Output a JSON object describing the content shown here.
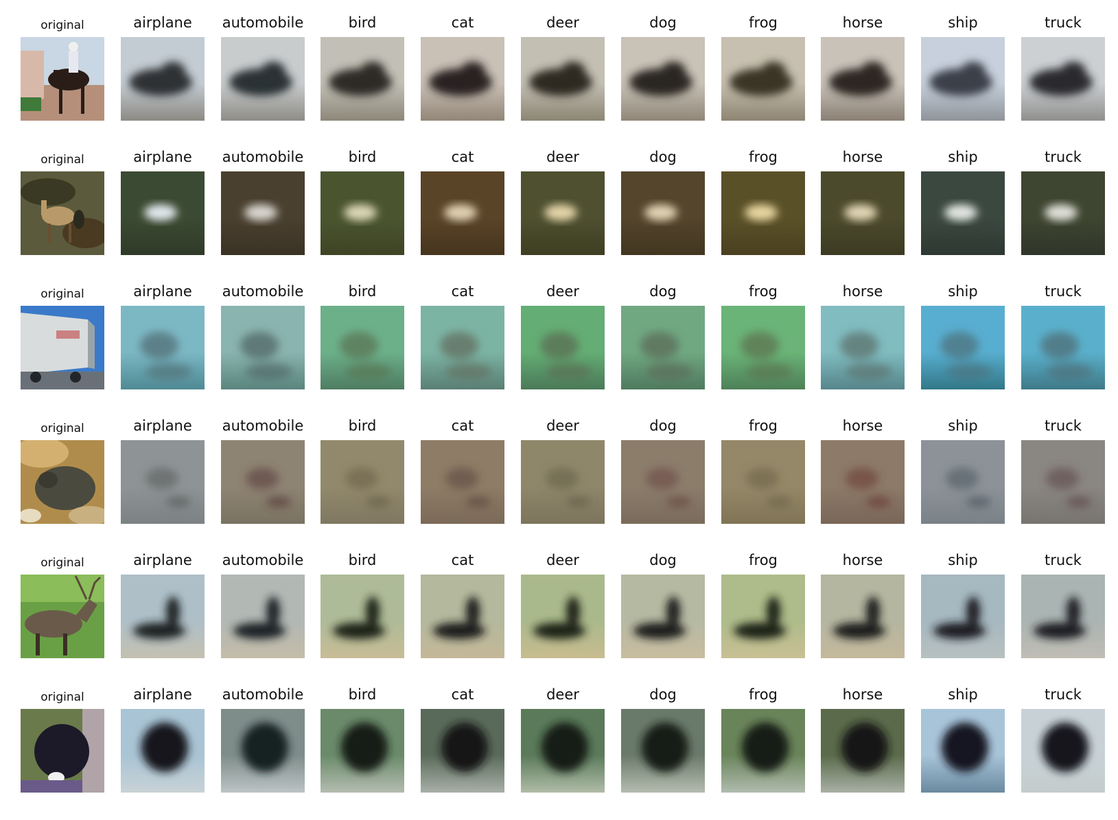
{
  "original_label": "original",
  "class_labels": [
    "airplane",
    "automobile",
    "bird",
    "cat",
    "deer",
    "dog",
    "frog",
    "horse",
    "ship",
    "truck"
  ],
  "rows": [
    {
      "original": {
        "subject": "rider on horse",
        "sky": "#c9d6e3",
        "ground": "#b58f7a",
        "subject_color": "#2a1d18"
      },
      "bg": [
        "#c4ccd3",
        "#c9cccd",
        "#c2c0b6",
        "#c9c0b6",
        "#c3bfb3",
        "#c8c2b7",
        "#c7c0b0",
        "#c8c2b9",
        "#c7d0dc",
        "#ccd0d3"
      ],
      "ground": [
        "#8c8a83",
        "#8e8c87",
        "#8c8779",
        "#938678",
        "#8c8573",
        "#8f8677",
        "#8d8472",
        "#8a8074",
        "#8e949a",
        "#8f8f8d"
      ],
      "blob": [
        "#2f3336",
        "#2c3036",
        "#2d2b25",
        "#2a2420",
        "#2e2a22",
        "#2c2722",
        "#3a3428",
        "#2e2822",
        "#3b4148",
        "#2b2c2e"
      ]
    },
    {
      "original": {
        "subject": "deer in brush",
        "sky": "#5c5a3c",
        "ground": "#4a3a22",
        "subject_color": "#b89a6a"
      },
      "bg": [
        "#3b4a32",
        "#4a4030",
        "#4a5530",
        "#5a4428",
        "#4e5030",
        "#54452c",
        "#5a5028",
        "#4c4a2c",
        "#3b4840",
        "#3e4530"
      ],
      "ground": [
        "#2f3a28",
        "#3a3224",
        "#3f4424",
        "#46341e",
        "#3e3e22",
        "#423620",
        "#4a4020",
        "#3c3a22",
        "#2e3832",
        "#30362a"
      ],
      "blob": [
        "#e2e8ee",
        "#d8d6cf",
        "#dcd6b5",
        "#e0d0b0",
        "#e4d4a8",
        "#e0d2b2",
        "#e8d6a0",
        "#e0d4b4",
        "#e2e6e2",
        "#e0e0d8"
      ]
    },
    {
      "original": {
        "subject": "semi truck trailer",
        "sky": "#3a7ac8",
        "ground": "#9aa0a8",
        "subject_color": "#d8dcdc"
      },
      "bg": [
        "#7cb8c4",
        "#8ab4b0",
        "#6cb08a",
        "#7cb4a4",
        "#64ad74",
        "#70a882",
        "#6ab478",
        "#80bcc0",
        "#58aed0",
        "#5ab0cc"
      ],
      "ground": [
        "#4f8a94",
        "#5a857e",
        "#4e7d62",
        "#5a7f74",
        "#4a7a58",
        "#4f7a5e",
        "#4e8058",
        "#56868c",
        "#327888",
        "#3f7a88"
      ],
      "blob": [
        "#4f6a6f",
        "#4d6060",
        "#58704f",
        "#5f6a5a",
        "#5a6a4e",
        "#5a6656",
        "#5c6e4c",
        "#5a6c66",
        "#4c6e76",
        "#4e6a70"
      ]
    },
    {
      "original": {
        "subject": "frog on sand",
        "sky": "#b08c4c",
        "ground": "#8c7a5a",
        "subject_color": "#4a4a3e"
      },
      "bg": [
        "#8e9496",
        "#8e8474",
        "#92896c",
        "#8e7c66",
        "#8f876a",
        "#8c7d6b",
        "#948868",
        "#8d7a68",
        "#8c9298",
        "#8a8682"
      ],
      "ground": [
        "#7c8284",
        "#7a7262",
        "#7f7760",
        "#7b6a58",
        "#7c745c",
        "#7a6b5c",
        "#807456",
        "#7a6658",
        "#7a8288",
        "#78746e"
      ],
      "blob": [
        "#5a5e5c",
        "#5a3a3a",
        "#6a6048",
        "#5e4a40",
        "#66604a",
        "#6a4a44",
        "#6e6448",
        "#6a3c34",
        "#4e5a62",
        "#5e4a48"
      ]
    },
    {
      "original": {
        "subject": "elk on grass",
        "sky": "#8bbd5a",
        "ground": "#6aa045",
        "subject_color": "#6a5a4a"
      },
      "bg": [
        "#aebfc8",
        "#b2b8b4",
        "#aebb98",
        "#b4b89c",
        "#aab98c",
        "#b6b9a2",
        "#aebb8a",
        "#b4b6a0",
        "#a6b8c0",
        "#aab4b2"
      ],
      "ground": [
        "#c4c0b0",
        "#c4bca8",
        "#c8bc96",
        "#c4b898",
        "#c8bc90",
        "#c8bca0",
        "#c8c094",
        "#c4b89c",
        "#b8c0c0",
        "#c0bdb4"
      ],
      "blob": [
        "#1c2024",
        "#1f2226",
        "#1c2018",
        "#1d1f1a",
        "#1b2018",
        "#1d1f1a",
        "#1c2018",
        "#1c1e1a",
        "#1a1e22",
        "#1c1e20"
      ]
    },
    {
      "original": {
        "subject": "black dog",
        "sky": "#6a7a4a",
        "ground": "#8a9a6a",
        "subject_color": "#1c1a28"
      },
      "bg": [
        "#a9c4d4",
        "#7e8c8a",
        "#6a8a6a",
        "#5a6a5a",
        "#5a7a5a",
        "#6a7a6a",
        "#6a845a",
        "#5a6a4a",
        "#a8c4d8",
        "#c8d2d6"
      ],
      "ground": [
        "#c8d2d6",
        "#bcc4c4",
        "#b4bcb0",
        "#a8b0a8",
        "#b0bca8",
        "#b4bcb0",
        "#b0bcae",
        "#a8b0a4",
        "#6a8aa0",
        "#c4cccc"
      ],
      "blob": [
        "#14181c",
        "#182024",
        "#161c18",
        "#141816",
        "#161c16",
        "#161a16",
        "#141a14",
        "#161816",
        "#121820",
        "#14181c"
      ]
    }
  ]
}
